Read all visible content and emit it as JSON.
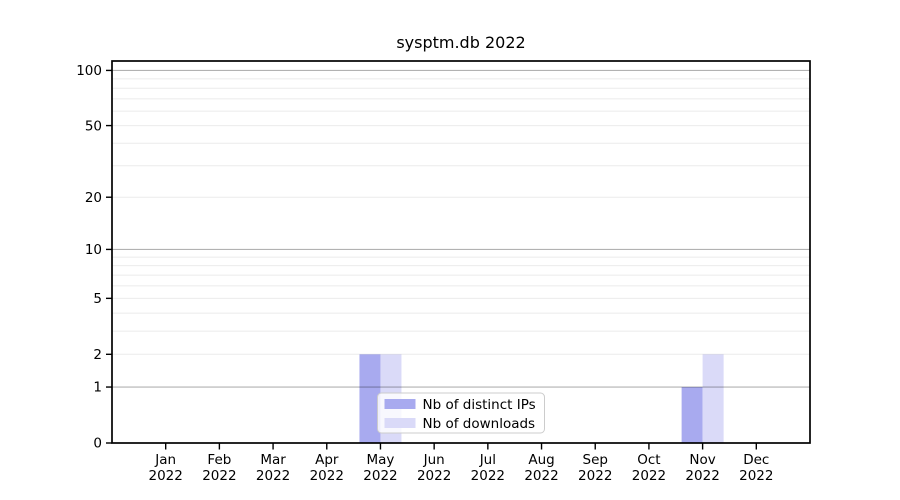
{
  "chart_data": {
    "type": "bar",
    "title": "sysptm.db 2022",
    "categories": [
      "Jan",
      "Feb",
      "Mar",
      "Apr",
      "May",
      "Jun",
      "Jul",
      "Aug",
      "Sep",
      "Oct",
      "Nov",
      "Dec"
    ],
    "year_label": "2022",
    "series": [
      {
        "name": "Nb of distinct IPs",
        "color": "#a8aaef",
        "values": [
          0,
          0,
          0,
          0,
          2,
          0,
          0,
          0,
          0,
          0,
          1,
          0
        ]
      },
      {
        "name": "Nb of downloads",
        "color": "#dadaf8",
        "values": [
          0,
          0,
          0,
          0,
          2,
          0,
          0,
          0,
          0,
          0,
          2,
          0
        ]
      }
    ],
    "xlabel": "",
    "ylabel": "",
    "yscale": "log10(v+1)",
    "ylim": [
      0,
      112.5
    ],
    "ytick_labels": [
      "0",
      "1",
      "2",
      "5",
      "10",
      "20",
      "50",
      "100"
    ],
    "ytick_values": [
      0,
      1,
      2,
      5,
      10,
      20,
      50,
      100
    ],
    "major_grid_values": [
      1,
      10,
      100
    ],
    "minor_grid_values": [
      2,
      3,
      4,
      5,
      6,
      7,
      8,
      9,
      20,
      30,
      40,
      50,
      60,
      70,
      80,
      90
    ],
    "grid": true,
    "legend_position": "lower center inside",
    "colors": {
      "background": "#ffffff",
      "axis": "#000000",
      "major_grid": "rgba(0,0,0,0.30)",
      "minor_grid": "rgba(0,0,0,0.08)",
      "legend_border": "#cccccc",
      "legend_bg": "rgba(255,255,255,0.8)"
    }
  }
}
